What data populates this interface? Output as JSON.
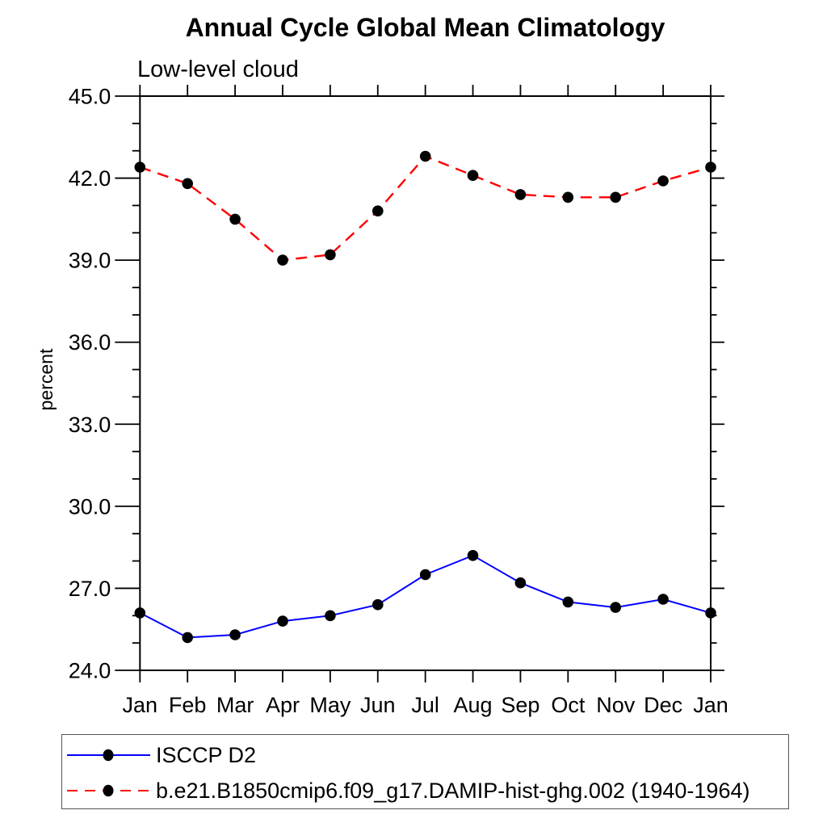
{
  "chart_data": {
    "type": "line",
    "title": "Annual Cycle Global Mean Climatology",
    "subtitle": "Low-level cloud",
    "ylabel": "percent",
    "xlabel": "",
    "x_categories": [
      "Jan",
      "Feb",
      "Mar",
      "Apr",
      "May",
      "Jun",
      "Jul",
      "Aug",
      "Sep",
      "Oct",
      "Nov",
      "Dec",
      "Jan"
    ],
    "ylim": [
      24.0,
      45.0
    ],
    "y_major_tick_step": 3.0,
    "y_minor_tick_step": 1.0,
    "y_tick_labels": [
      "24.0",
      "27.0",
      "30.0",
      "33.0",
      "36.0",
      "39.0",
      "42.0",
      "45.0"
    ],
    "grid": false,
    "legend_position": "bottom",
    "series": [
      {
        "name": "ISCCP D2",
        "color": "#0000ff",
        "line_style": "solid",
        "marker": "filled-circle",
        "marker_color": "#000000",
        "values": [
          26.1,
          25.2,
          25.3,
          25.8,
          26.0,
          26.4,
          27.5,
          28.2,
          27.2,
          26.5,
          26.3,
          26.6,
          26.1
        ]
      },
      {
        "name": "b.e21.B1850cmip6.f09_g17.DAMIP-hist-ghg.002 (1940-1964)",
        "color": "#ff0000",
        "line_style": "dashed",
        "marker": "filled-circle",
        "marker_color": "#000000",
        "values": [
          42.4,
          41.8,
          40.5,
          39.0,
          39.2,
          40.8,
          42.8,
          42.1,
          41.4,
          41.3,
          41.3,
          41.9,
          42.4
        ]
      }
    ]
  }
}
